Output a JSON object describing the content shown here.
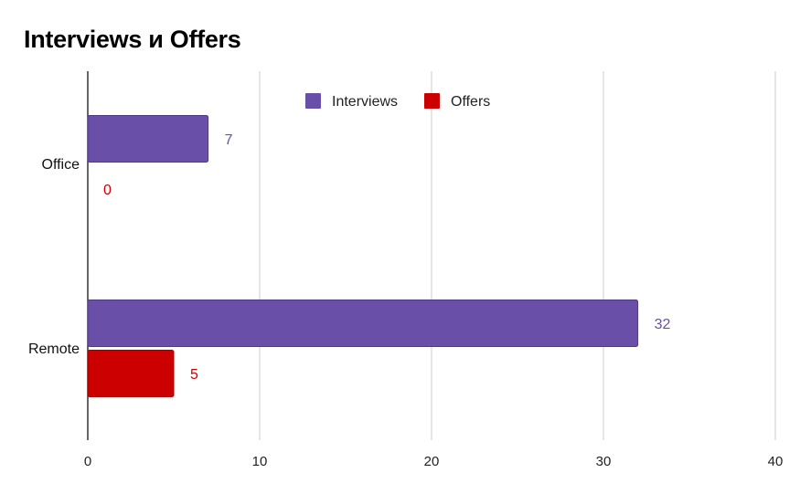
{
  "chart_data": {
    "type": "bar",
    "orientation": "horizontal",
    "title": "Interviews и Offers",
    "categories": [
      "Office",
      "Remote"
    ],
    "series": [
      {
        "name": "Interviews",
        "values": [
          7,
          32
        ],
        "color": "#6a4fa8"
      },
      {
        "name": "Offers",
        "values": [
          0,
          5
        ],
        "color": "#cc0000"
      }
    ],
    "xlim": [
      0,
      40
    ],
    "x_ticks": [
      0,
      10,
      20,
      30,
      40
    ],
    "grid": true,
    "legend": "top-center",
    "data_labels": true
  }
}
